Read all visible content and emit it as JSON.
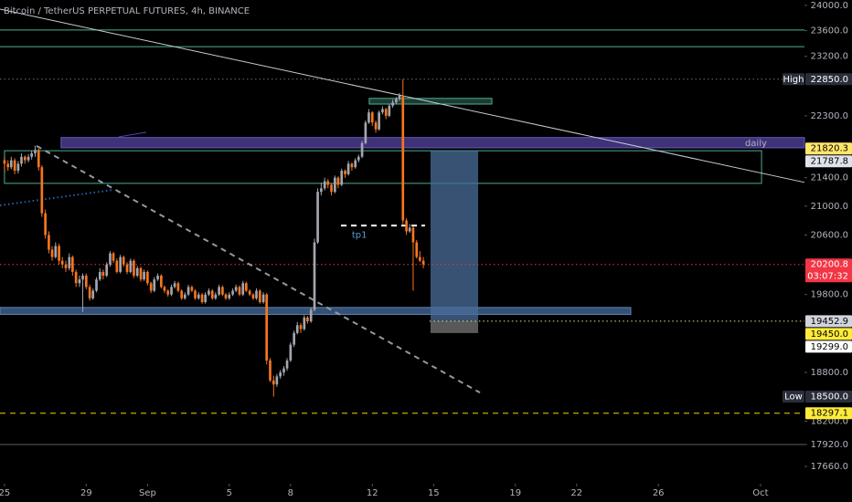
{
  "chart_data": {
    "type": "candlestick",
    "title": "Bitcoin / TetherUS PERPETUAL FUTURES, 4h, BINANCE",
    "log_scale": true,
    "grid": false,
    "up_color": "#a3a6af",
    "down_color": "#f7761f",
    "xlim": [
      -0.22,
      39.15
    ],
    "ylim": [
      17458,
      24086
    ],
    "xticks": [
      {
        "value": 0,
        "label": "25"
      },
      {
        "value": 4,
        "label": "29"
      },
      {
        "value": 7,
        "label": "Sep"
      },
      {
        "value": 11,
        "label": "5"
      },
      {
        "value": 14,
        "label": "8"
      },
      {
        "value": 18,
        "label": "12"
      },
      {
        "value": 21,
        "label": "15"
      },
      {
        "value": 25,
        "label": "19"
      },
      {
        "value": 28,
        "label": "22"
      },
      {
        "value": 32,
        "label": "26"
      },
      {
        "value": 37,
        "label": "Oct"
      }
    ],
    "yticks": [
      {
        "value": 24000,
        "label": "24000.0"
      },
      {
        "value": 23600,
        "label": "23600.0"
      },
      {
        "value": 23200,
        "label": "23200.0"
      },
      {
        "value": 22300,
        "label": "22300.0"
      },
      {
        "value": 21400,
        "label": "21400.0"
      },
      {
        "value": 21000,
        "label": "21000.0"
      },
      {
        "value": 20600,
        "label": "20600.0"
      },
      {
        "value": 19800,
        "label": "19800.0"
      },
      {
        "value": 18800,
        "label": "18800.0"
      },
      {
        "value": 18200,
        "label": "18200.0"
      },
      {
        "value": 17920,
        "label": "17920.0"
      },
      {
        "value": 17660,
        "label": "17660.0"
      }
    ],
    "x": [
      0,
      0.17,
      0.33,
      0.5,
      0.67,
      0.83,
      1,
      1.17,
      1.33,
      1.5,
      1.67,
      1.83,
      2,
      2.17,
      2.33,
      2.5,
      2.67,
      2.83,
      3,
      3.17,
      3.33,
      3.5,
      3.67,
      3.83,
      4,
      4.17,
      4.33,
      4.5,
      4.67,
      4.83,
      5,
      5.17,
      5.33,
      5.5,
      5.67,
      5.83,
      6,
      6.17,
      6.33,
      6.5,
      6.67,
      6.83,
      7,
      7.17,
      7.33,
      7.5,
      7.67,
      7.83,
      8,
      8.17,
      8.33,
      8.5,
      8.67,
      8.83,
      9,
      9.17,
      9.33,
      9.5,
      9.67,
      9.83,
      10,
      10.17,
      10.33,
      10.5,
      10.67,
      10.83,
      11,
      11.17,
      11.33,
      11.5,
      11.67,
      11.83,
      12,
      12.17,
      12.33,
      12.5,
      12.67,
      12.83,
      13,
      13.17,
      13.33,
      13.5,
      13.67,
      13.83,
      14,
      14.17,
      14.33,
      14.5,
      14.67,
      14.83,
      15,
      15.17,
      15.33,
      15.5,
      15.67,
      15.83,
      16,
      16.17,
      16.33,
      16.5,
      16.67,
      16.83,
      17,
      17.17,
      17.33,
      17.5,
      17.67,
      17.83,
      18,
      18.17,
      18.33,
      18.5,
      18.67,
      18.83,
      19,
      19.17,
      19.33,
      19.5,
      19.67,
      19.83,
      20,
      20.17,
      20.33,
      20.5
    ],
    "candles": [
      [
        21650,
        21700,
        21480,
        21600
      ],
      [
        21600,
        21650,
        21500,
        21550
      ],
      [
        21550,
        21700,
        21520,
        21650
      ],
      [
        21650,
        21680,
        21450,
        21500
      ],
      [
        21500,
        21640,
        21460,
        21600
      ],
      [
        21600,
        21750,
        21560,
        21700
      ],
      [
        21700,
        21720,
        21600,
        21650
      ],
      [
        21650,
        21740,
        21620,
        21700
      ],
      [
        21700,
        21790,
        21660,
        21750
      ],
      [
        21750,
        21860,
        21700,
        21800
      ],
      [
        21800,
        21820,
        21500,
        21550
      ],
      [
        21550,
        21580,
        20850,
        20900
      ],
      [
        20900,
        20950,
        20550,
        20600
      ],
      [
        20600,
        20650,
        20350,
        20400
      ],
      [
        20400,
        20450,
        20250,
        20300
      ],
      [
        20300,
        20500,
        20280,
        20450
      ],
      [
        20450,
        20480,
        20200,
        20250
      ],
      [
        20250,
        20300,
        20150,
        20200
      ],
      [
        20200,
        20250,
        20100,
        20150
      ],
      [
        20150,
        20350,
        20120,
        20300
      ],
      [
        20300,
        20320,
        20050,
        20100
      ],
      [
        20100,
        20130,
        19900,
        19950
      ],
      [
        19950,
        20050,
        19900,
        20000
      ],
      [
        20000,
        20080,
        19570,
        20050
      ],
      [
        20050,
        20080,
        19870,
        19900
      ],
      [
        19900,
        19930,
        19720,
        19750
      ],
      [
        19750,
        19880,
        19730,
        19850
      ],
      [
        19850,
        20030,
        19830,
        20000
      ],
      [
        20000,
        20150,
        19980,
        20100
      ],
      [
        20100,
        20130,
        20000,
        20050
      ],
      [
        20050,
        20230,
        20030,
        20200
      ],
      [
        20200,
        20380,
        20170,
        20350
      ],
      [
        20350,
        20370,
        20220,
        20250
      ],
      [
        20250,
        20280,
        20080,
        20100
      ],
      [
        20100,
        20330,
        20080,
        20300
      ],
      [
        20300,
        20320,
        20170,
        20200
      ],
      [
        20200,
        20230,
        20070,
        20100
      ],
      [
        20100,
        20280,
        20080,
        20250
      ],
      [
        20250,
        20270,
        20020,
        20050
      ],
      [
        20050,
        20180,
        20030,
        20150
      ],
      [
        20150,
        20170,
        19970,
        20000
      ],
      [
        20000,
        20130,
        19980,
        20100
      ],
      [
        20100,
        20120,
        19920,
        19950
      ],
      [
        19950,
        19970,
        19820,
        19850
      ],
      [
        19850,
        20030,
        19830,
        20000
      ],
      [
        20000,
        20080,
        19980,
        20050
      ],
      [
        20050,
        20070,
        19880,
        19900
      ],
      [
        19900,
        19920,
        19820,
        19850
      ],
      [
        19850,
        19870,
        19770,
        19800
      ],
      [
        19800,
        19930,
        19780,
        19900
      ],
      [
        19900,
        19980,
        19880,
        19950
      ],
      [
        19950,
        19970,
        19830,
        19850
      ],
      [
        19850,
        19870,
        19730,
        19750
      ],
      [
        19750,
        19830,
        19730,
        19800
      ],
      [
        19800,
        19930,
        19780,
        19900
      ],
      [
        19900,
        19920,
        19830,
        19850
      ],
      [
        19850,
        19870,
        19730,
        19750
      ],
      [
        19750,
        19830,
        19730,
        19800
      ],
      [
        19800,
        19820,
        19680,
        19700
      ],
      [
        19700,
        19830,
        19680,
        19800
      ],
      [
        19800,
        19880,
        19780,
        19850
      ],
      [
        19850,
        19870,
        19730,
        19750
      ],
      [
        19750,
        19830,
        19730,
        19800
      ],
      [
        19800,
        19930,
        19780,
        19900
      ],
      [
        19900,
        19920,
        19780,
        19800
      ],
      [
        19800,
        19820,
        19730,
        19750
      ],
      [
        19750,
        19830,
        19730,
        19800
      ],
      [
        19800,
        19880,
        19780,
        19850
      ],
      [
        19850,
        19930,
        19830,
        19900
      ],
      [
        19900,
        19920,
        19780,
        19800
      ],
      [
        19800,
        19980,
        19780,
        19950
      ],
      [
        19950,
        19970,
        19830,
        19850
      ],
      [
        19850,
        19870,
        19780,
        19800
      ],
      [
        19800,
        19820,
        19730,
        19750
      ],
      [
        19750,
        19880,
        19730,
        19850
      ],
      [
        19850,
        19870,
        19680,
        19700
      ],
      [
        19700,
        19830,
        19680,
        19800
      ],
      [
        19800,
        19820,
        18900,
        18950
      ],
      [
        18950,
        18980,
        18680,
        18700
      ],
      [
        18700,
        18760,
        18500,
        18650
      ],
      [
        18650,
        18780,
        18620,
        18750
      ],
      [
        18750,
        18830,
        18720,
        18800
      ],
      [
        18800,
        18880,
        18760,
        18850
      ],
      [
        18850,
        18980,
        18820,
        18950
      ],
      [
        18950,
        19180,
        18930,
        19150
      ],
      [
        19150,
        19330,
        19120,
        19300
      ],
      [
        19300,
        19440,
        19280,
        19400
      ],
      [
        19400,
        19430,
        19300,
        19350
      ],
      [
        19350,
        19530,
        19330,
        19500
      ],
      [
        19500,
        19520,
        19420,
        19450
      ],
      [
        19450,
        19630,
        19430,
        19600
      ],
      [
        19600,
        20550,
        19580,
        20500
      ],
      [
        20500,
        21250,
        20480,
        21200
      ],
      [
        21200,
        21330,
        21150,
        21250
      ],
      [
        21250,
        21400,
        21220,
        21350
      ],
      [
        21350,
        21380,
        21250,
        21300
      ],
      [
        21300,
        21320,
        21150,
        21200
      ],
      [
        21200,
        21430,
        21180,
        21400
      ],
      [
        21400,
        21420,
        21250,
        21300
      ],
      [
        21300,
        21530,
        21280,
        21500
      ],
      [
        21500,
        21520,
        21400,
        21450
      ],
      [
        21450,
        21640,
        21430,
        21600
      ],
      [
        21600,
        21620,
        21500,
        21550
      ],
      [
        21550,
        21680,
        21530,
        21650
      ],
      [
        21650,
        21730,
        21620,
        21700
      ],
      [
        21700,
        21930,
        21680,
        21900
      ],
      [
        21900,
        22230,
        21880,
        22200
      ],
      [
        22200,
        22400,
        22180,
        22350
      ],
      [
        22350,
        22370,
        22150,
        22200
      ],
      [
        22200,
        22230,
        22050,
        22100
      ],
      [
        22100,
        22380,
        22080,
        22350
      ],
      [
        22350,
        22440,
        22320,
        22400
      ],
      [
        22400,
        22420,
        22250,
        22300
      ],
      [
        22300,
        22480,
        22280,
        22450
      ],
      [
        22450,
        22540,
        22420,
        22500
      ],
      [
        22500,
        22580,
        22470,
        22550
      ],
      [
        22550,
        22640,
        22520,
        22600
      ],
      [
        22600,
        22850,
        20750,
        20800
      ],
      [
        20800,
        20830,
        20600,
        20650
      ],
      [
        20650,
        20750,
        20630,
        20700
      ],
      [
        20700,
        20720,
        19850,
        20500
      ],
      [
        20500,
        20530,
        20280,
        20300
      ],
      [
        20300,
        20380,
        20230,
        20250
      ],
      [
        20250,
        20300,
        20150,
        20200.8
      ]
    ],
    "levels": [
      {
        "price": 23610,
        "color": "#4caf94",
        "style": "solid"
      },
      {
        "price": 23350,
        "color": "#4caf94",
        "style": "solid"
      },
      {
        "price": 22850,
        "color": "#6b6e78",
        "style": "dotted"
      },
      {
        "price": 20200.8,
        "color": "#f23645",
        "style": "dotted"
      },
      {
        "price": 19452.9,
        "from": 20.8,
        "color": "#e8e2a0",
        "style": "dotted"
      },
      {
        "price": 18297.1,
        "color": "#f5d200",
        "style": "dashed"
      },
      {
        "price": 17920,
        "color": "#5d606b",
        "style": "solid"
      }
    ],
    "boxes": [
      {
        "x": [
          2.77,
          39.15
        ],
        "y": [
          21830,
          21980
        ],
        "fill": "#4a3b8c",
        "stroke": "#6a57c0",
        "opacity": 0.85
      },
      {
        "x": [
          0,
          37.05
        ],
        "y": [
          21320,
          21787.8
        ],
        "fill": "none",
        "stroke": "#4caf94",
        "opacity": 1
      },
      {
        "x": [
          -0.22,
          30.65
        ],
        "y": [
          19540,
          19630
        ],
        "fill": "#3d5f8a",
        "stroke": "#5b84b8",
        "opacity": 0.85
      },
      {
        "x": [
          17.85,
          23.85
        ],
        "y": [
          22475,
          22560
        ],
        "fill": "#1e3b33",
        "stroke": "#4caf94",
        "opacity": 1
      },
      {
        "x": [
          20.85,
          23.18
        ],
        "y": [
          19452.9,
          21787.8
        ],
        "fill": "#4a6e9a",
        "stroke": "none",
        "opacity": 0.75
      },
      {
        "x": [
          20.85,
          23.18
        ],
        "y": [
          19299,
          19452.9
        ],
        "fill": "#6f6f6f",
        "stroke": "none",
        "opacity": 0.8
      }
    ],
    "trendlines": [
      {
        "x": [
          -0.22,
          39.15
        ],
        "y": [
          23940,
          21334
        ],
        "color": "#c9cbd1",
        "style": "solid"
      },
      {
        "x": [
          1.57,
          23.27
        ],
        "y": [
          21858,
          18549
        ],
        "color": "#9598a1",
        "style": "dashed"
      },
      {
        "x": [
          -0.22,
          5.37
        ],
        "y": [
          21010,
          21230
        ],
        "color": "#2a5fb0",
        "style": "dotted"
      },
      {
        "x": [
          5.59,
          6.94
        ],
        "y": [
          21990,
          22057
        ],
        "color": "#5a45b0",
        "style": "solid"
      },
      {
        "x": [
          16.47,
          20.58
        ],
        "y": [
          20730,
          20730
        ],
        "color": "#ffffff",
        "style": "dashed"
      }
    ],
    "annotations": [
      {
        "text": "daily",
        "x": 36.24,
        "price": 21897,
        "color": "#b2b5be"
      },
      {
        "text": "tp1",
        "x": 17.0,
        "price": 20600,
        "color": "#5b9bd5"
      }
    ],
    "price_labels": [
      {
        "tag": "High",
        "price": {
          "value": 22850,
          "label": "22850.0"
        },
        "bg": "#2a2e39",
        "fg": "#ffffff"
      },
      {
        "price": 21820.3,
        "bg": "#ffe66b",
        "fg": "#000000"
      },
      {
        "price": 21787.8,
        "bg": "#e0e3eb",
        "fg": "#000000"
      },
      {
        "price": 20200.8,
        "countdown": "03:07:32",
        "bg": "#f23645",
        "fg": "#ffffff"
      },
      {
        "price": 19452.9,
        "bg": "#d1d4dc",
        "fg": "#000000"
      },
      {
        "price": {
          "value": 19450,
          "label": "19450.0"
        },
        "bg": "#ffeb3b",
        "fg": "#000000"
      },
      {
        "price": {
          "value": 19299,
          "label": "19299.0"
        },
        "bg": "#ffffff",
        "fg": "#000000"
      },
      {
        "tag": "Low",
        "price": {
          "value": 18500,
          "label": "18500.0"
        },
        "bg": "#2a2e39",
        "fg": "#ffffff"
      },
      {
        "price": 18297.1,
        "bg": "#ffeb3b",
        "fg": "#000000"
      }
    ]
  }
}
